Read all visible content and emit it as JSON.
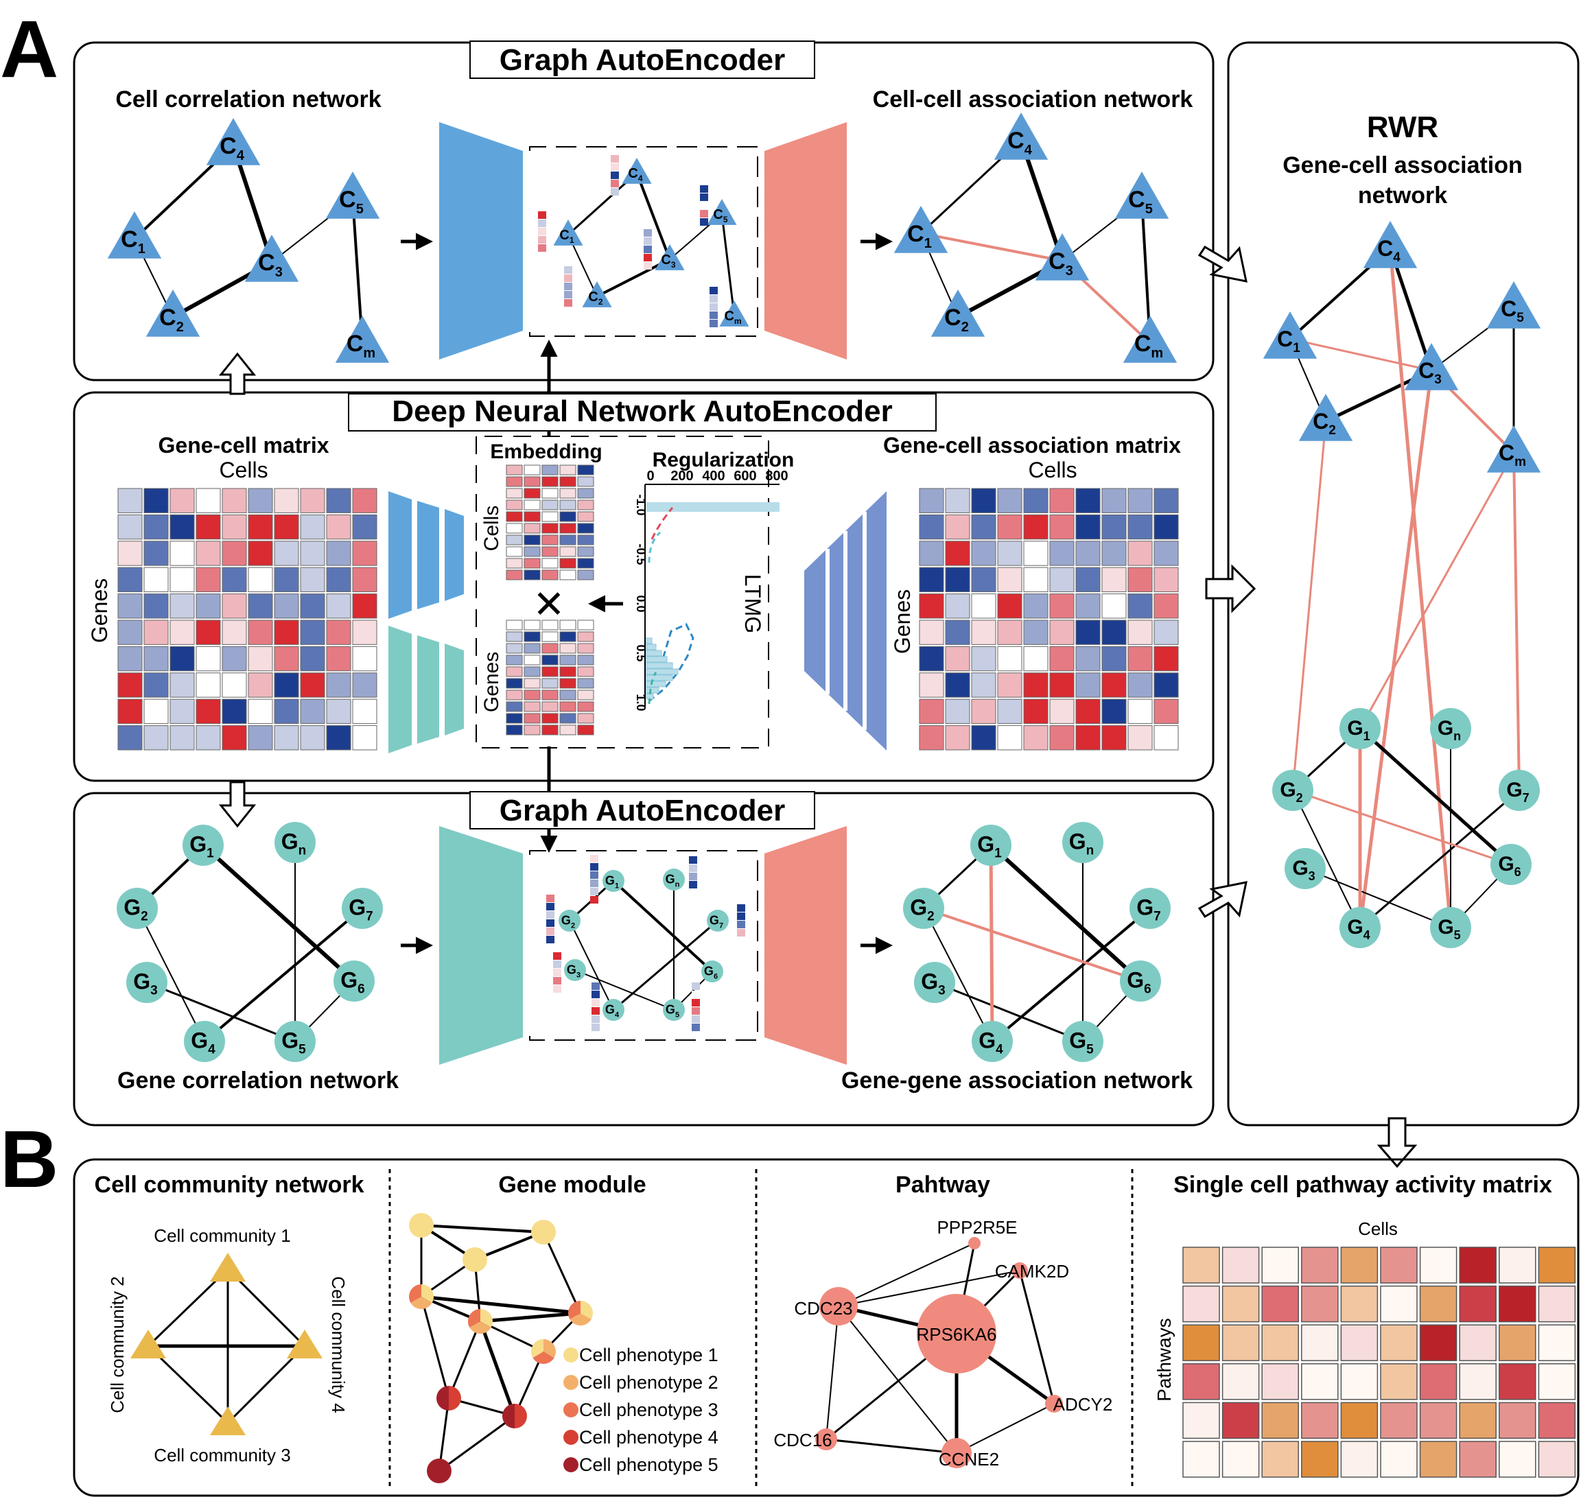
{
  "panel_letters": {
    "a": "A",
    "b": "B"
  },
  "section_a": {
    "gae_title": "Graph AutoEncoder",
    "cell_corr_title": "Cell correlation network",
    "cell_assoc_title": "Cell-cell association network",
    "dnn_title": "Deep Neural Network AutoEncoder",
    "gene_cell_matrix_title": "Gene-cell matrix",
    "gene_cell_assoc_matrix_title": "Gene-cell association matrix",
    "cells_label": "Cells",
    "genes_label": "Genes",
    "embedding_title": "Embedding",
    "regularization_title": "Regularization",
    "ltmg_label": "LTMG",
    "reg_x_ticks": [
      "0",
      "200",
      "400",
      "600",
      "800"
    ],
    "reg_y_ticks": [
      "-1.0",
      "-0.5",
      "0.0",
      "0.5",
      "1.0"
    ],
    "gae2_title": "Graph AutoEncoder",
    "gene_corr_title": "Gene correlation network",
    "gene_assoc_title": "Gene-gene association network",
    "rwr_title": "RWR",
    "rwr_subtitle_1": "Gene-cell association",
    "rwr_subtitle_2": "network"
  },
  "node_labels": {
    "c": "C",
    "g": "G",
    "subs": {
      "s1": "1",
      "s2": "2",
      "s3": "3",
      "s4": "4",
      "s5": "5",
      "s6": "6",
      "s7": "7",
      "sm": "m",
      "sn": "n"
    }
  },
  "section_b": {
    "community_title": "Cell community network",
    "community_labels": [
      "Cell community 1",
      "Cell community 2",
      "Cell community 3",
      "Cell community 4"
    ],
    "gene_module_title": "Gene module",
    "phenotypes": [
      "Cell phenotype 1",
      "Cell phenotype 2",
      "Cell phenotype 3",
      "Cell phenotype 4",
      "Cell phenotype 5"
    ],
    "pathway_title": "Pahtway",
    "pathway_genes": [
      "PPP2R5E",
      "CAMK2D",
      "CDC23",
      "RPS6KA6",
      "ADCY2",
      "CDC16",
      "CCNE2"
    ],
    "activity_title": "Single cell pathway activity matrix",
    "activity_cells_label": "Cells",
    "activity_pathways_label": "Pathways"
  },
  "colors": {
    "cell_node": "#5b9bd5",
    "gene_node": "#7ecbc4",
    "encoder_blue": "#5fa5dc",
    "encoder_teal": "#7ecbc4",
    "decoder_red": "#ef8e82",
    "decoder_slate": "#7693cf",
    "new_edge": "#e8887c",
    "community": "#e9b94c",
    "pathway_node": "#f08a7e",
    "phenotypes": [
      "#f7dc8a",
      "#f3b06b",
      "#ec7452",
      "#d73f32",
      "#a3202a"
    ]
  }
}
